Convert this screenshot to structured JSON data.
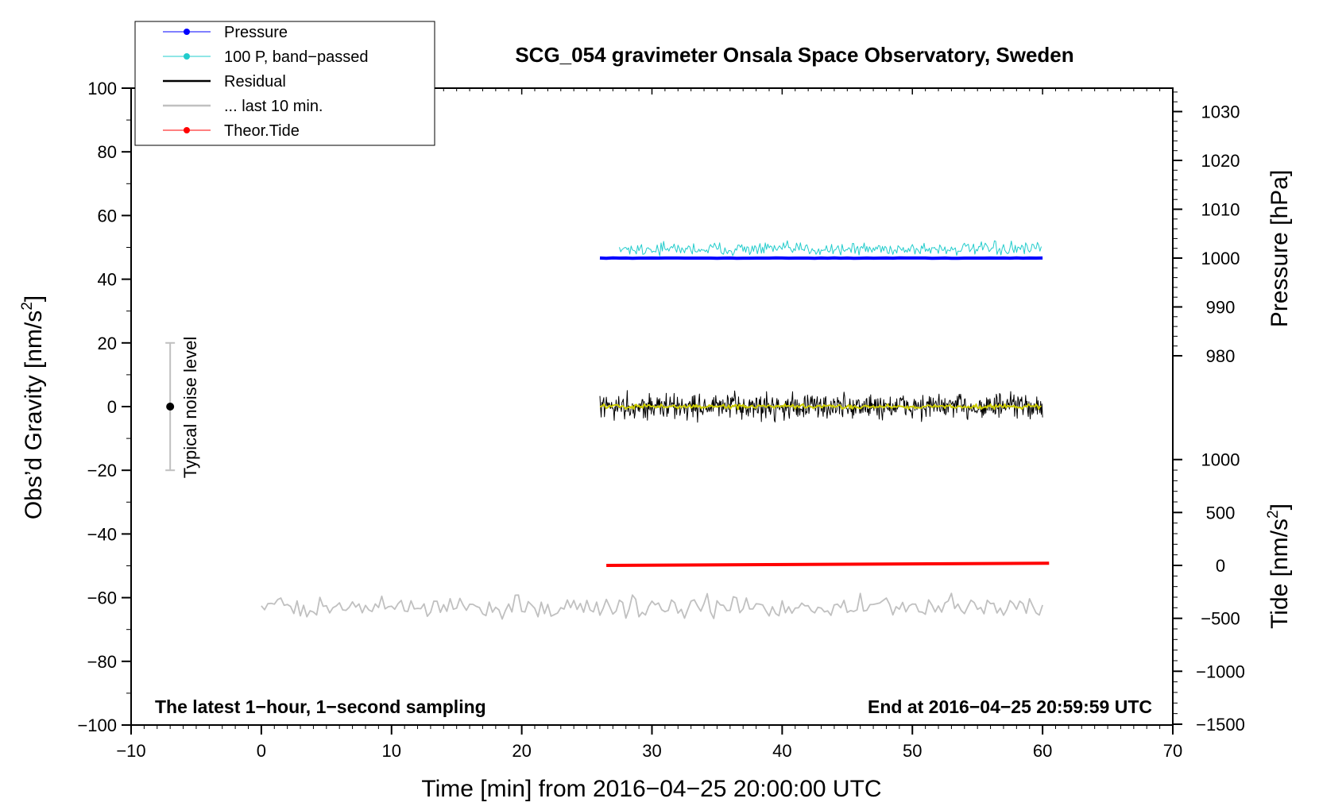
{
  "chart_data": {
    "type": "line",
    "title": "SCG_054 gravimeter Onsala Space Observatory, Sweden",
    "xlabel": "Time [min] from 2016−04−25 20:00:00 UTC",
    "ylabel_left": "Obs’d Gravity [nm/s",
    "ylabel_left_sup": "2",
    "ylabel_left_end": "]",
    "ylabel_right_pressure": "Pressure [hPa]",
    "ylabel_right_tide": "Tide [nm/s",
    "ylabel_right_tide_sup": "2",
    "ylabel_right_tide_end": "]",
    "xlim": [
      -10,
      70
    ],
    "ylim": [
      -100,
      100
    ],
    "pressure_axis_range": [
      975,
      1035
    ],
    "tide_axis_range": [
      -1500,
      1500
    ],
    "x_ticks": [
      "−10",
      "0",
      "10",
      "20",
      "30",
      "40",
      "50",
      "60",
      "70"
    ],
    "x_tick_values": [
      -10,
      0,
      10,
      20,
      30,
      40,
      50,
      60,
      70
    ],
    "y_ticks": [
      "100",
      "80",
      "60",
      "40",
      "20",
      "0",
      "−20",
      "−40",
      "−60",
      "−80",
      "−100"
    ],
    "y_tick_values": [
      100,
      80,
      60,
      40,
      20,
      0,
      -20,
      -40,
      -60,
      -80,
      -100
    ],
    "pressure_ticks": [
      "1030",
      "1020",
      "1010",
      "1000",
      "990",
      "980"
    ],
    "pressure_tick_values": [
      1030,
      1020,
      1010,
      1000,
      990,
      980
    ],
    "tide_ticks": [
      "1000",
      "500",
      "0",
      "−500",
      "−1000",
      "−1500"
    ],
    "tide_tick_values": [
      1000,
      500,
      0,
      -500,
      -1000,
      -1500
    ],
    "footer_left": "The latest 1−hour, 1−second sampling",
    "footer_right": "End at 2016−04−25 20:59:59 UTC",
    "noise_label": "Typical noise level",
    "noise_bar": {
      "x": -7,
      "center": 0,
      "low": -20,
      "high": 20
    },
    "legend": [
      {
        "label": "Pressure",
        "color": "#0000ff",
        "marker": "dot"
      },
      {
        "label": "100 P, band−passed",
        "color": "#22cccc",
        "marker": "dot"
      },
      {
        "label": "Residual",
        "color": "#000000",
        "marker": "line"
      },
      {
        "label": "... last 10 min.",
        "color": "#c0c0c0",
        "marker": "line"
      },
      {
        "label": "Theor.Tide",
        "color": "#ff0000",
        "marker": "dot"
      }
    ],
    "series": [
      {
        "name": "Pressure",
        "axis": "pressure",
        "color": "#0000ff",
        "x_range": [
          26,
          60
        ],
        "level_hPa": 1000.0
      },
      {
        "name": "100 P, band−passed",
        "axis": "gravity",
        "color": "#22cccc",
        "x_range": [
          26,
          60
        ],
        "center": 49.5,
        "amplitude": 3
      },
      {
        "name": "Residual",
        "axis": "gravity",
        "color": "#000000",
        "x_range": [
          26,
          60
        ],
        "center": 0,
        "amplitude": 6
      },
      {
        "name": "Residual (smoothed)",
        "axis": "gravity",
        "color": "#cccc00",
        "x_range": [
          26,
          60
        ],
        "center": 0,
        "amplitude": 1
      },
      {
        "name": "... last 10 min.",
        "axis": "gravity",
        "color": "#c0c0c0",
        "x_range": [
          0,
          60
        ],
        "center": -63,
        "amplitude": 5
      },
      {
        "name": "Theor.Tide",
        "axis": "tide",
        "color": "#ff0000",
        "x_range": [
          26.5,
          60.5
        ],
        "start": 0,
        "end": 20
      }
    ]
  }
}
